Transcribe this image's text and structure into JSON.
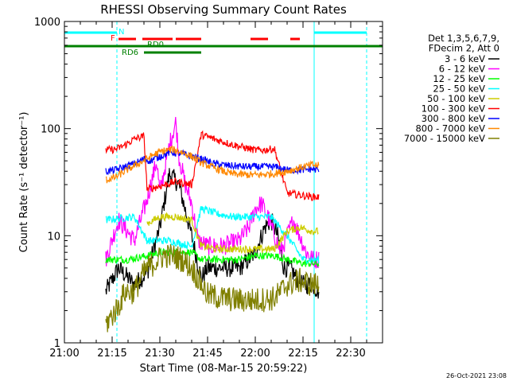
{
  "chart_data": {
    "type": "line",
    "title": "RHESSI Observing Summary Count Rates",
    "xlabel": "Start Time (08-Mar-15 20:59:22)",
    "ylabel": "Count Rate (s⁻¹ detector⁻¹)",
    "ylog": true,
    "ylim": [
      1,
      1000
    ],
    "xlim_minutes": [
      0,
      100
    ],
    "x_ticks": [
      {
        "m": 0,
        "label": "21:00"
      },
      {
        "m": 15,
        "label": "21:15"
      },
      {
        "m": 30,
        "label": "21:30"
      },
      {
        "m": 45,
        "label": "21:45"
      },
      {
        "m": 60,
        "label": "22:00"
      },
      {
        "m": 75,
        "label": "22:15"
      },
      {
        "m": 90,
        "label": "22:30"
      }
    ],
    "y_ticks": [
      {
        "v": 1,
        "label": "1"
      },
      {
        "v": 10,
        "label": "10"
      },
      {
        "v": 100,
        "label": "100"
      },
      {
        "v": 1000,
        "label": "1000"
      }
    ],
    "legend": {
      "position": "right",
      "header": [
        "Det 1,3,5,6,7,9,",
        "FDecim 2, Att 0"
      ]
    },
    "series": [
      {
        "name": "3 - 6 keV",
        "color": "#000000",
        "points": [
          [
            13,
            3
          ],
          [
            17,
            5
          ],
          [
            22,
            3.5
          ],
          [
            26,
            4.5
          ],
          [
            30,
            12
          ],
          [
            33,
            38
          ],
          [
            36,
            30
          ],
          [
            40,
            10
          ],
          [
            43,
            4
          ],
          [
            45,
            5
          ],
          [
            50,
            5
          ],
          [
            55,
            5
          ],
          [
            58,
            6
          ],
          [
            60,
            7
          ],
          [
            63,
            12
          ],
          [
            65,
            14
          ],
          [
            67,
            10
          ],
          [
            69,
            5
          ],
          [
            71,
            5
          ],
          [
            73,
            4
          ],
          [
            75,
            3.5
          ],
          [
            78,
            3.5
          ],
          [
            80,
            3
          ]
        ]
      },
      {
        "name": "6 - 12 keV",
        "color": "#ff00ff",
        "points": [
          [
            13,
            6
          ],
          [
            17,
            14
          ],
          [
            22,
            9
          ],
          [
            26,
            22
          ],
          [
            29,
            50
          ],
          [
            30,
            25
          ],
          [
            33,
            70
          ],
          [
            35,
            115
          ],
          [
            36,
            55
          ],
          [
            38,
            30
          ],
          [
            40,
            20
          ],
          [
            42,
            9
          ],
          [
            45,
            8
          ],
          [
            50,
            8
          ],
          [
            55,
            9
          ],
          [
            58,
            12
          ],
          [
            60,
            18
          ],
          [
            62,
            20
          ],
          [
            64,
            15
          ],
          [
            66,
            10
          ],
          [
            68,
            7
          ],
          [
            70,
            10
          ],
          [
            72,
            14
          ],
          [
            74,
            10
          ],
          [
            76,
            7
          ],
          [
            78,
            6
          ],
          [
            80,
            6
          ]
        ]
      },
      {
        "name": "12 - 25 keV",
        "color": "#00ff00",
        "points": [
          [
            13,
            6
          ],
          [
            20,
            6
          ],
          [
            26,
            6.5
          ],
          [
            30,
            7
          ],
          [
            35,
            7
          ],
          [
            40,
            7
          ],
          [
            43,
            6
          ],
          [
            50,
            6
          ],
          [
            55,
            6
          ],
          [
            60,
            6.5
          ],
          [
            66,
            6.5
          ],
          [
            70,
            6
          ],
          [
            75,
            5.5
          ],
          [
            80,
            5.5
          ]
        ]
      },
      {
        "name": "25 - 50 keV",
        "color": "#00ffff",
        "points": [
          [
            13,
            14
          ],
          [
            17,
            14.5
          ],
          [
            22,
            15
          ],
          [
            26,
            9
          ],
          [
            30,
            9
          ],
          [
            33,
            9
          ],
          [
            36,
            8.5
          ],
          [
            40,
            8
          ],
          [
            43,
            18
          ],
          [
            48,
            16
          ],
          [
            53,
            15
          ],
          [
            57,
            15
          ],
          [
            61,
            15
          ],
          [
            65,
            15
          ],
          [
            70,
            10
          ],
          [
            75,
            6
          ],
          [
            80,
            6
          ]
        ]
      },
      {
        "name": "50 - 100 keV",
        "color": "#cccc00",
        "points": [
          [
            26,
            13
          ],
          [
            30,
            15
          ],
          [
            35,
            15
          ],
          [
            40,
            14
          ],
          [
            43,
            8
          ],
          [
            48,
            7.5
          ],
          [
            55,
            7.5
          ],
          [
            60,
            7.5
          ],
          [
            66,
            7.5
          ],
          [
            70,
            11
          ],
          [
            74,
            12
          ],
          [
            78,
            11
          ],
          [
            80,
            11
          ]
        ]
      },
      {
        "name": "100 - 300 keV",
        "color": "#ff0000",
        "points": [
          [
            13,
            63
          ],
          [
            16,
            64
          ],
          [
            19,
            70
          ],
          [
            22,
            80
          ],
          [
            25,
            85
          ],
          [
            26,
            27
          ],
          [
            30,
            29
          ],
          [
            35,
            32
          ],
          [
            40,
            30
          ],
          [
            43,
            88
          ],
          [
            47,
            80
          ],
          [
            52,
            72
          ],
          [
            57,
            66
          ],
          [
            60,
            63
          ],
          [
            63,
            63
          ],
          [
            66,
            65
          ],
          [
            70,
            25
          ],
          [
            74,
            24
          ],
          [
            78,
            23
          ],
          [
            80,
            23
          ]
        ]
      },
      {
        "name": "300 - 800 keV",
        "color": "#0000ff",
        "points": [
          [
            13,
            40
          ],
          [
            16,
            41
          ],
          [
            19,
            44
          ],
          [
            22,
            47
          ],
          [
            25,
            52
          ],
          [
            27,
            50
          ],
          [
            30,
            55
          ],
          [
            33,
            60
          ],
          [
            36,
            59
          ],
          [
            40,
            55
          ],
          [
            43,
            52
          ],
          [
            47,
            47
          ],
          [
            52,
            45
          ],
          [
            57,
            44
          ],
          [
            61,
            44
          ],
          [
            66,
            44
          ],
          [
            70,
            41
          ],
          [
            74,
            41
          ],
          [
            78,
            42
          ],
          [
            80,
            41
          ]
        ]
      },
      {
        "name": "800 - 7000 keV",
        "color": "#ff8800",
        "points": [
          [
            13,
            33
          ],
          [
            16,
            35
          ],
          [
            19,
            40
          ],
          [
            22,
            45
          ],
          [
            25,
            50
          ],
          [
            28,
            57
          ],
          [
            31,
            62
          ],
          [
            34,
            64
          ],
          [
            37,
            60
          ],
          [
            40,
            55
          ],
          [
            43,
            48
          ],
          [
            47,
            43
          ],
          [
            52,
            38
          ],
          [
            57,
            37
          ],
          [
            61,
            37
          ],
          [
            66,
            38
          ],
          [
            70,
            40
          ],
          [
            74,
            43
          ],
          [
            78,
            46
          ],
          [
            80,
            45
          ]
        ]
      },
      {
        "name": "7000 - 15000 keV",
        "color": "#808000",
        "points": [
          [
            13,
            1.5
          ],
          [
            15,
            1.8
          ],
          [
            17,
            2.2
          ],
          [
            19,
            3
          ],
          [
            22,
            3
          ],
          [
            24,
            4
          ],
          [
            26,
            5
          ],
          [
            28,
            5.5
          ],
          [
            31,
            6.5
          ],
          [
            34,
            6.5
          ],
          [
            37,
            6
          ],
          [
            40,
            5
          ],
          [
            42,
            4
          ],
          [
            45,
            2.8
          ],
          [
            50,
            2.6
          ],
          [
            55,
            2.5
          ],
          [
            60,
            2.5
          ],
          [
            66,
            2.6
          ],
          [
            70,
            3.5
          ],
          [
            74,
            3.8
          ],
          [
            78,
            3.5
          ],
          [
            80,
            3.5
          ]
        ]
      }
    ],
    "state_bars": [
      {
        "label": "N",
        "color": "#00ffff",
        "row": 0,
        "segments": [
          [
            0,
            16.5
          ],
          [
            78.5,
            95
          ]
        ]
      },
      {
        "label": "F",
        "color": "#ff0000",
        "row": 1,
        "segments": [
          [
            17,
            22.5
          ],
          [
            24.5,
            34
          ],
          [
            35,
            43
          ],
          [
            58.5,
            64
          ],
          [
            71,
            74
          ]
        ]
      },
      {
        "label": "RD0",
        "color": "#008000",
        "row": 2,
        "segments": [
          [
            0,
            100
          ]
        ]
      },
      {
        "label": "RD6",
        "color": "#008000",
        "row": 3,
        "segments": [
          [
            25,
            43
          ]
        ]
      }
    ],
    "footer_date": "26-Oct-2021 23:08"
  }
}
